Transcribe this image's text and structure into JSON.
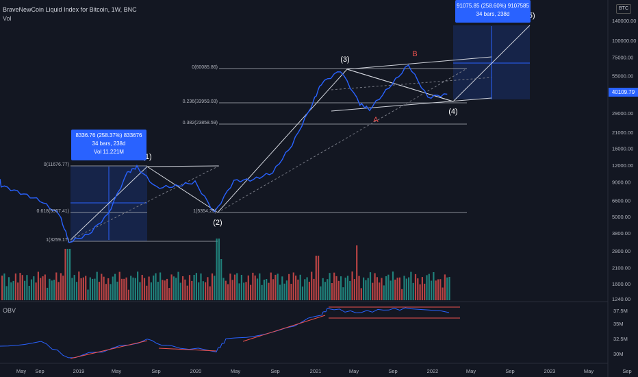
{
  "header": {
    "title": "BraveNewCoin Liquid Index for Bitcoin, 1W, BNC",
    "vol_label": "Vol",
    "currency_badge": "BTC"
  },
  "obv_label": "OBV",
  "current_price_tag": "40109.79",
  "tooltip_a": {
    "line1": "8336.76 (258.37%) 833676",
    "line2": "34 bars, 238d",
    "line3": "Vol 11.221M"
  },
  "tooltip_b": {
    "line1": "91075.85 (258.60%) 9107585",
    "line2": "34 bars, 238d"
  },
  "chart_data": {
    "type": "line",
    "y_scale": "log",
    "price_axis_ticks": [
      140000,
      100000,
      75000,
      55000,
      40000,
      29000,
      21000,
      16000,
      12000,
      9000,
      6600,
      5000,
      3800,
      2800,
      2100,
      1600,
      1240
    ],
    "price_axis_labels": [
      "140000.00",
      "100000.00",
      "75000.00",
      "55000.00",
      "40000.00",
      "29000.00",
      "21000.00",
      "16000.00",
      "12000.00",
      "9000.00",
      "6600.00",
      "5000.00",
      "3800.00",
      "2800.00",
      "2100.00",
      "1600.00",
      "1240.00"
    ],
    "obv_axis_labels": [
      "37.5M",
      "35M",
      "32.5M",
      "30M"
    ],
    "time_axis_labels": [
      "May",
      "Sep",
      "2019",
      "May",
      "Sep",
      "2020",
      "May",
      "Sep",
      "2021",
      "May",
      "Sep",
      "2022",
      "May",
      "Sep",
      "2023",
      "May",
      "Sep"
    ],
    "price_series": {
      "name": "BLX",
      "dates": [
        "2018-05",
        "2018-07",
        "2018-09",
        "2018-11",
        "2018-12",
        "2019-02",
        "2019-04",
        "2019-06",
        "2019-07",
        "2019-09",
        "2019-11",
        "2020-01",
        "2020-03",
        "2020-05",
        "2020-07",
        "2020-09",
        "2020-11",
        "2021-01",
        "2021-02",
        "2021-04",
        "2021-06",
        "2021-07",
        "2021-09",
        "2021-11",
        "2022-01",
        "2022-03"
      ],
      "values": [
        8500,
        7500,
        6600,
        5200,
        3260,
        3700,
        5200,
        10500,
        11677,
        8200,
        8400,
        9000,
        5354,
        9200,
        9400,
        10600,
        17000,
        33000,
        48000,
        60086,
        34000,
        31000,
        45000,
        66000,
        38000,
        40110
      ]
    },
    "fibonacci_levels": [
      {
        "label": "0(11676.77)",
        "value": 11676.77
      },
      {
        "label": "0.618(5307.41)",
        "value": 5307.41
      },
      {
        "label": "1(3259.17)",
        "value": 3259.17
      },
      {
        "label": "1(5354.25)",
        "value": 5354.25
      },
      {
        "label": "0(60085.86)",
        "value": 60085.86
      },
      {
        "label": "0.236(33959.03)",
        "value": 33959.03
      },
      {
        "label": "0.382(23858.59)",
        "value": 23858.59
      }
    ],
    "wave_labels": [
      "(1)",
      "(2)",
      "(3)",
      "(4)",
      "(5)",
      "A",
      "B"
    ],
    "colors": {
      "price": "#2962ff",
      "up_volume": "#26a69a",
      "down_volume": "#ef5350",
      "background": "#131722",
      "trendline": "#ef5350"
    }
  }
}
